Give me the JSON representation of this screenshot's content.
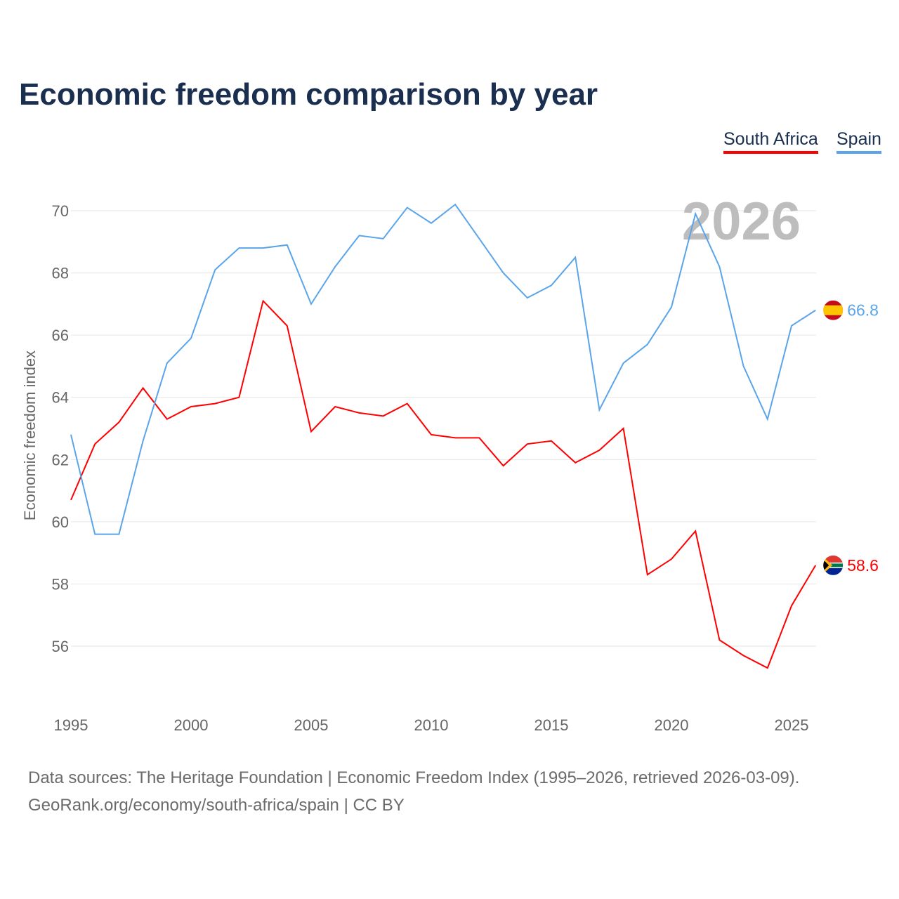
{
  "chart_data": {
    "type": "line",
    "title": "Economic freedom comparison by year",
    "ylabel": "Economic freedom index",
    "xlabel": "",
    "ylim": [
      54,
      71
    ],
    "yticks": [
      56,
      58,
      60,
      62,
      64,
      66,
      68,
      70
    ],
    "xticks": [
      1995,
      2000,
      2005,
      2010,
      2015,
      2020,
      2025
    ],
    "grid": true,
    "legend_position": "top-right",
    "year_watermark": "2026",
    "x": [
      1995,
      1996,
      1997,
      1998,
      1999,
      2000,
      2001,
      2002,
      2003,
      2004,
      2005,
      2006,
      2007,
      2008,
      2009,
      2010,
      2011,
      2012,
      2013,
      2014,
      2015,
      2016,
      2017,
      2018,
      2019,
      2020,
      2021,
      2022,
      2023,
      2024,
      2025,
      2026
    ],
    "series": [
      {
        "name": "South Africa",
        "color": "#ff0000",
        "end_label": "58.6",
        "values": [
          60.7,
          62.5,
          63.2,
          64.3,
          63.3,
          63.7,
          63.8,
          64.0,
          67.1,
          66.3,
          62.9,
          63.7,
          63.5,
          63.4,
          63.8,
          62.8,
          62.7,
          62.7,
          61.8,
          62.5,
          62.6,
          61.9,
          62.3,
          63.0,
          58.3,
          58.8,
          59.7,
          56.2,
          55.7,
          55.3,
          57.3,
          58.6
        ]
      },
      {
        "name": "Spain",
        "color": "#5aa5ea",
        "end_label": "66.8",
        "values": [
          62.8,
          59.6,
          59.6,
          62.6,
          65.1,
          65.9,
          68.1,
          68.8,
          68.8,
          68.9,
          67.0,
          68.2,
          69.2,
          69.1,
          70.1,
          69.6,
          70.2,
          69.1,
          68.0,
          67.2,
          67.6,
          68.5,
          63.6,
          65.1,
          65.7,
          66.9,
          69.9,
          68.2,
          65.0,
          63.3,
          66.3,
          66.8
        ]
      }
    ]
  },
  "footer": {
    "line1": "Data sources: The Heritage Foundation | Economic Freedom Index (1995–2026, retrieved 2026-03-09).",
    "line2": "GeoRank.org/economy/south-africa/spain | CC BY"
  }
}
